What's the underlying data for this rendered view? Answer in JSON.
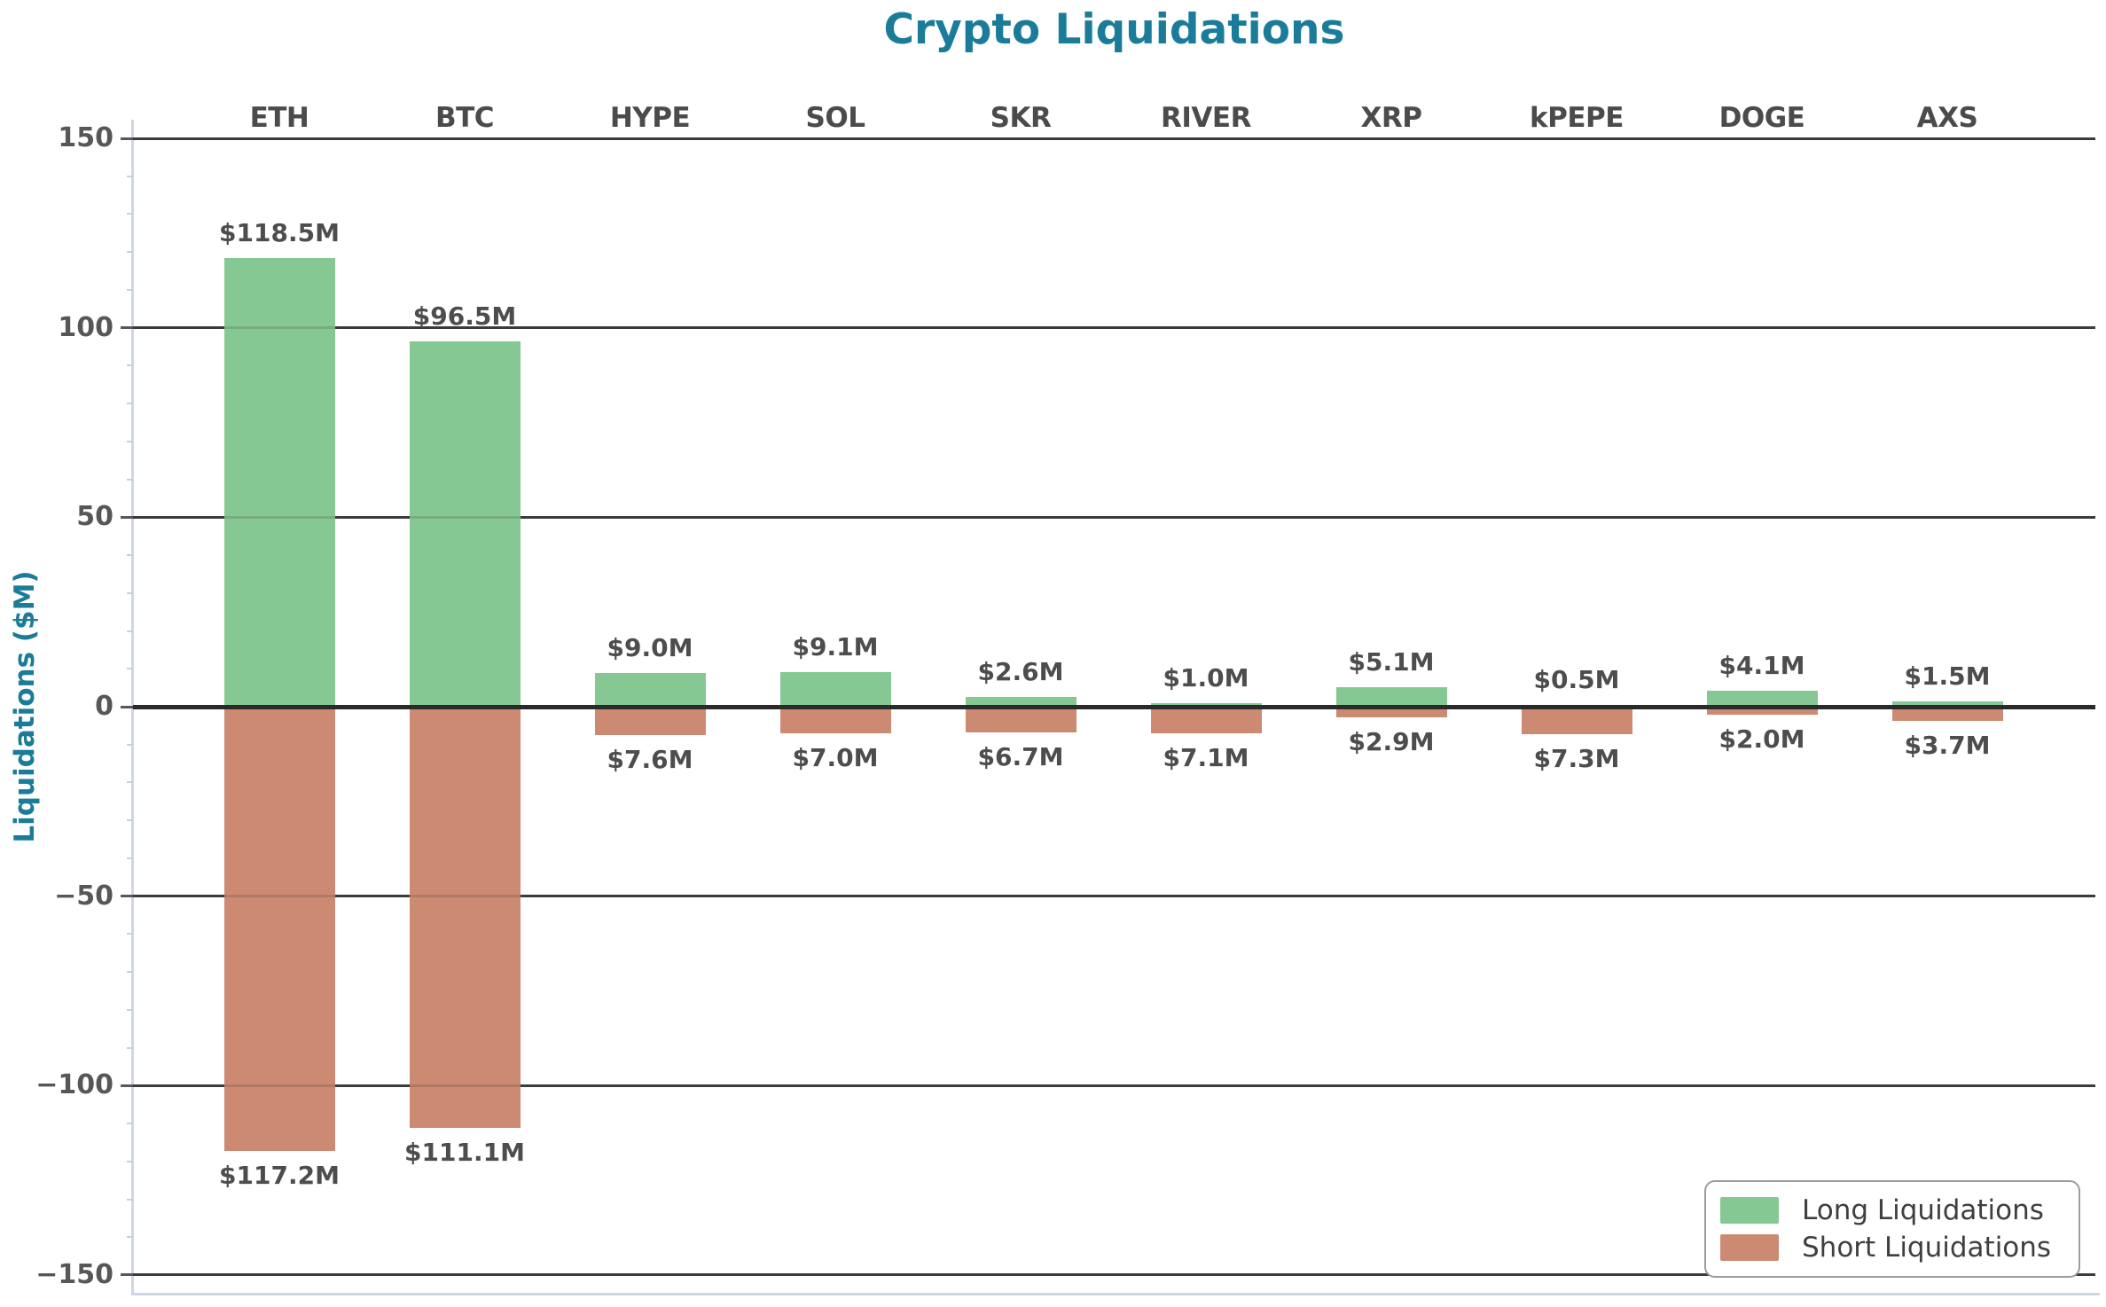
{
  "chart_data": {
    "type": "bar",
    "title": "Crypto Liquidations",
    "ylabel": "Liquidations ($M)",
    "categories": [
      "ETH",
      "BTC",
      "HYPE",
      "SOL",
      "SKR",
      "RIVER",
      "XRP",
      "kPEPE",
      "DOGE",
      "AXS"
    ],
    "series": [
      {
        "name": "Long Liquidations",
        "color": "#85c894",
        "direction": "up",
        "values": [
          118.5,
          96.5,
          9.0,
          9.1,
          2.6,
          1.0,
          5.1,
          0.5,
          4.1,
          1.5
        ],
        "labels": [
          "$118.5M",
          "$96.5M",
          "$9.0M",
          "$9.1M",
          "$2.6M",
          "$1.0M",
          "$5.1M",
          "$0.5M",
          "$4.1M",
          "$1.5M"
        ]
      },
      {
        "name": "Short Liquidations",
        "color": "#cd8a72",
        "direction": "down",
        "values": [
          117.2,
          111.1,
          7.6,
          7.0,
          6.7,
          7.1,
          2.9,
          7.3,
          2.0,
          3.7
        ],
        "labels": [
          "$117.2M",
          "$111.1M",
          "$7.6M",
          "$7.0M",
          "$6.7M",
          "$7.1M",
          "$2.9M",
          "$7.3M",
          "$2.0M",
          "$3.7M"
        ]
      }
    ],
    "yticks": [
      150,
      100,
      50,
      0,
      -50,
      -100,
      -150
    ],
    "ytick_labels": [
      "150",
      "100",
      "50",
      "0",
      "−50",
      "−100",
      "−150"
    ],
    "ylim": [
      -155,
      155
    ],
    "grid": true,
    "legend_position": "lower-right"
  },
  "style": {
    "title_color": "#1b7c99",
    "axis_label_color": "#1b7c99",
    "tick_color": "#575757",
    "bar_label_color": "#4d4d4d",
    "category_label_color": "#4b4b4b",
    "grid_color": "#3d3d3d",
    "zero_line_color": "#2a2a2a",
    "spine_color": "#cfd6e6",
    "minor_tick_color": "#c7d0e2",
    "legend_border_color": "#9c9c9c",
    "legend_text_color": "#3f3f3f",
    "background": "#ffffff"
  }
}
